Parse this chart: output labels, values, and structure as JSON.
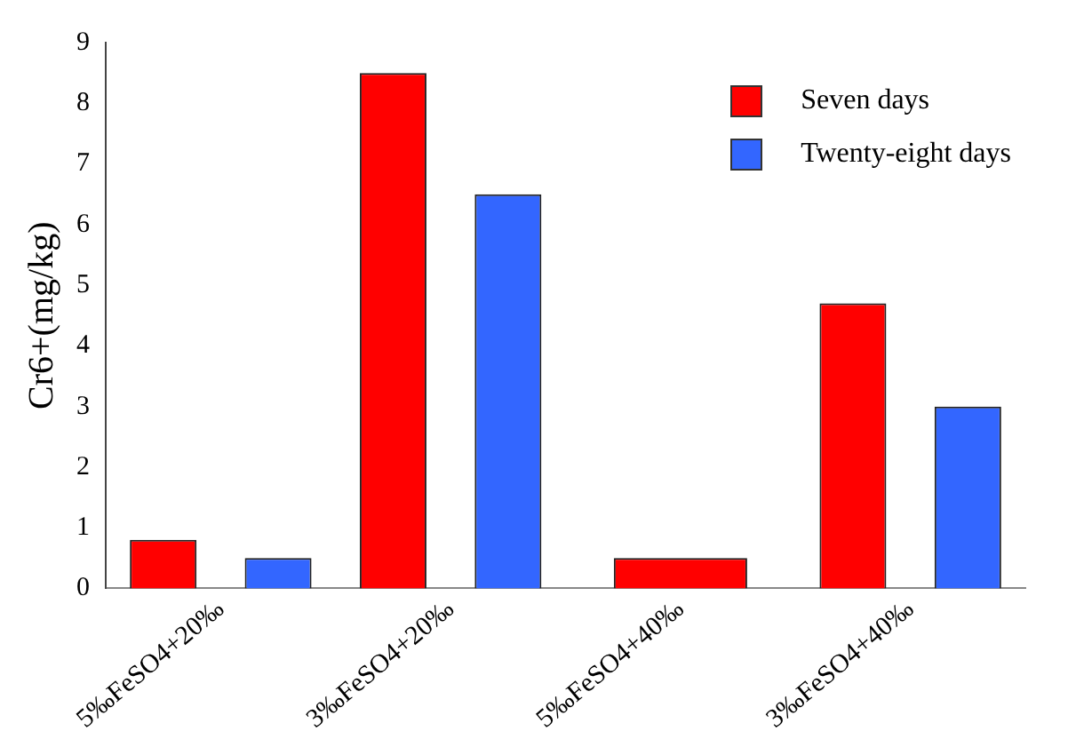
{
  "chart_data": {
    "type": "bar",
    "ylabel": "Cr6+(mg/kg)",
    "categories": [
      "5‰FeSO4+20‰",
      "3‰FeSO4+20‰",
      "5‰FeSO4+40‰",
      "3‰FeSO4+40‰"
    ],
    "series": [
      {
        "name": "Seven days",
        "color": "#ff0000",
        "values": [
          0.8,
          8.5,
          0.5,
          4.7
        ]
      },
      {
        "name": "Twenty-eight days",
        "color": "#3366ff",
        "values": [
          0.5,
          6.5,
          null,
          3.0
        ]
      }
    ],
    "ylim": [
      0,
      9
    ],
    "yticks": [
      0,
      1,
      2,
      3,
      4,
      5,
      6,
      7,
      8,
      9
    ],
    "grid": false,
    "legend": "top right"
  }
}
